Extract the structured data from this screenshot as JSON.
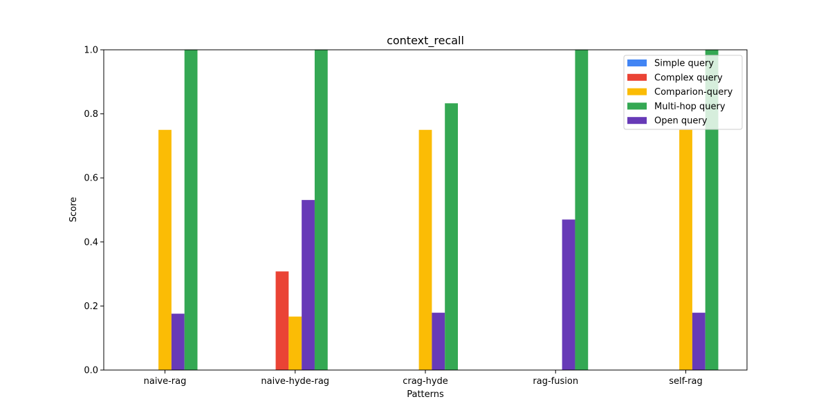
{
  "chart_data": {
    "type": "bar",
    "title": "context_recall",
    "xlabel": "Patterns",
    "ylabel": "Score",
    "ylim": [
      0,
      1
    ],
    "yticks": [
      "0.0",
      "0.2",
      "0.4",
      "0.6",
      "0.8",
      "1.0"
    ],
    "grid": false,
    "legend_position": "top-right",
    "categories": [
      "naive-rag",
      "naive-hyde-rag",
      "crag-hyde",
      "rag-fusion",
      "self-rag"
    ],
    "series": [
      {
        "name": "Simple query",
        "color": "#4285F4",
        "values": [
          0,
          0,
          0,
          0,
          0
        ]
      },
      {
        "name": "Complex query",
        "color": "#EA4335",
        "values": [
          0,
          0.308,
          0,
          0,
          0
        ]
      },
      {
        "name": "Comparion-query",
        "color": "#FBBC05",
        "values": [
          0.75,
          0.167,
          0.75,
          0,
          0.75
        ]
      },
      {
        "name": "Open query",
        "color": "#673AB7",
        "values": [
          0.176,
          0.531,
          0.179,
          0.47,
          0.179
        ]
      },
      {
        "name": "Multi-hop query",
        "color": "#34A853",
        "values": [
          1.0,
          1.0,
          0.833,
          1.0,
          1.0
        ]
      }
    ],
    "legend_order": [
      "Simple query",
      "Complex query",
      "Comparion-query",
      "Multi-hop query",
      "Open query"
    ]
  }
}
